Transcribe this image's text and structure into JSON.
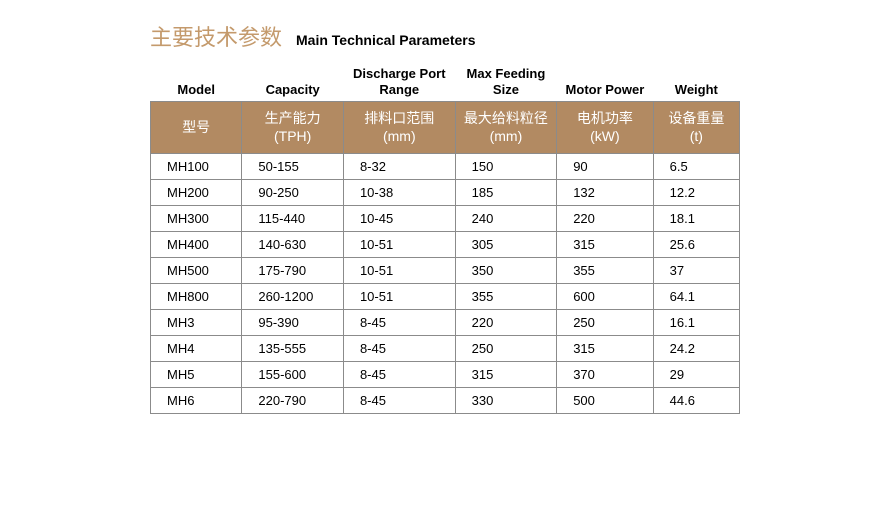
{
  "title": {
    "cn": "主要技术参数",
    "en": "Main Technical Parameters"
  },
  "colors": {
    "title_cn": "#c49a6c",
    "header_bg": "#b28a62",
    "header_text": "#ffffff",
    "border": "#8b8b8b",
    "text": "#000000",
    "background": "#ffffff"
  },
  "columns_en": [
    "Model",
    "Capacity",
    "Discharge Port Range",
    "Max Feeding Size",
    "Motor Power",
    "Weight"
  ],
  "columns_cn": [
    "型号",
    "生产能力\n(TPH)",
    "排料口范围\n(mm)",
    "最大给料粒径\n(mm)",
    "电机功率\n(kW)",
    "设备重量\n(t)"
  ],
  "rows": [
    [
      "MH100",
      "50-155",
      "8-32",
      "150",
      "90",
      "6.5"
    ],
    [
      "MH200",
      "90-250",
      "10-38",
      "185",
      "132",
      "12.2"
    ],
    [
      "MH300",
      "115-440",
      "10-45",
      "240",
      "220",
      "18.1"
    ],
    [
      "MH400",
      "140-630",
      "10-51",
      "305",
      "315",
      "25.6"
    ],
    [
      "MH500",
      "175-790",
      "10-51",
      "350",
      "355",
      "37"
    ],
    [
      "MH800",
      "260-1200",
      "10-51",
      "355",
      "600",
      "64.1"
    ],
    [
      "MH3",
      "95-390",
      "8-45",
      "220",
      "250",
      "16.1"
    ],
    [
      "MH4",
      "135-555",
      "8-45",
      "250",
      "315",
      "24.2"
    ],
    [
      "MH5",
      "155-600",
      "8-45",
      "315",
      "370",
      "29"
    ],
    [
      "MH6",
      "220-790",
      "8-45",
      "330",
      "500",
      "44.6"
    ]
  ]
}
